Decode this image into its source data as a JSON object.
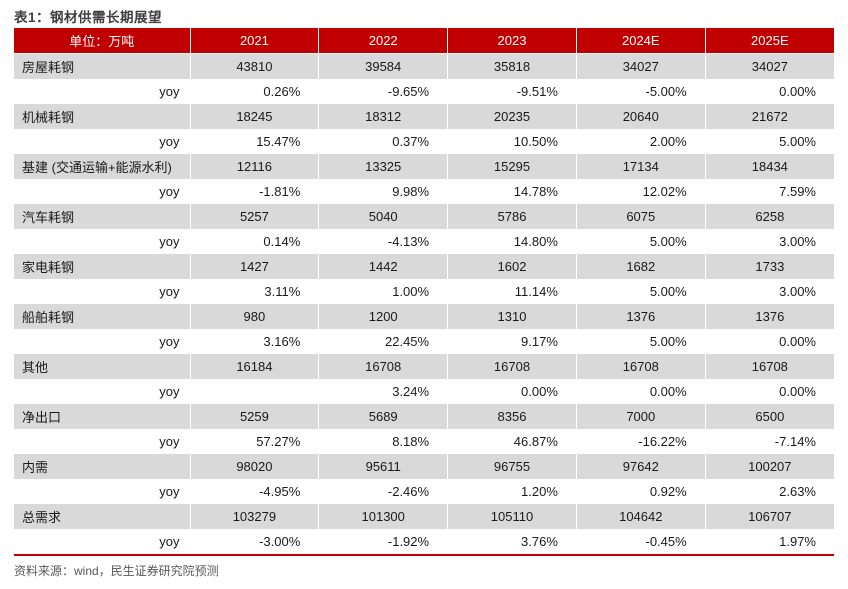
{
  "title": "表1：钢材供需长期展望",
  "footer": "资料来源：wind，民生证券研究院预测",
  "colors": {
    "header_bg": "#c00000",
    "band_bg": "#d9d9d9",
    "accent_line": "#c00000",
    "title_color": "#3f3f3f",
    "footer_color": "#595959"
  },
  "table": {
    "columns": [
      "单位：万吨",
      "2021",
      "2022",
      "2023",
      "2024E",
      "2025E"
    ],
    "yoy_label": "yoy",
    "groups": [
      {
        "label": "房屋耗钢",
        "bold": false,
        "values": [
          "43810",
          "39584",
          "35818",
          "34027",
          "34027"
        ],
        "yoy": [
          "0.26%",
          "-9.65%",
          "-9.51%",
          "-5.00%",
          "0.00%"
        ]
      },
      {
        "label": "机械耗钢",
        "bold": false,
        "values": [
          "18245",
          "18312",
          "20235",
          "20640",
          "21672"
        ],
        "yoy": [
          "15.47%",
          "0.37%",
          "10.50%",
          "2.00%",
          "5.00%"
        ]
      },
      {
        "label": "基建 (交通运输+能源水利)",
        "bold": false,
        "values": [
          "12116",
          "13325",
          "15295",
          "17134",
          "18434"
        ],
        "yoy": [
          "-1.81%",
          "9.98%",
          "14.78%",
          "12.02%",
          "7.59%"
        ]
      },
      {
        "label": "汽车耗钢",
        "bold": false,
        "values": [
          "5257",
          "5040",
          "5786",
          "6075",
          "6258"
        ],
        "yoy": [
          "0.14%",
          "-4.13%",
          "14.80%",
          "5.00%",
          "3.00%"
        ]
      },
      {
        "label": "家电耗钢",
        "bold": false,
        "values": [
          "1427",
          "1442",
          "1602",
          "1682",
          "1733"
        ],
        "yoy": [
          "3.11%",
          "1.00%",
          "11.14%",
          "5.00%",
          "3.00%"
        ]
      },
      {
        "label": "船舶耗钢",
        "bold": false,
        "values": [
          "980",
          "1200",
          "1310",
          "1376",
          "1376"
        ],
        "yoy": [
          "3.16%",
          "22.45%",
          "9.17%",
          "5.00%",
          "0.00%"
        ]
      },
      {
        "label": "其他",
        "bold": false,
        "values": [
          "16184",
          "16708",
          "16708",
          "16708",
          "16708"
        ],
        "yoy": [
          "",
          "3.24%",
          "0.00%",
          "0.00%",
          "0.00%"
        ]
      },
      {
        "label": "净出口",
        "bold": false,
        "values": [
          "5259",
          "5689",
          "8356",
          "7000",
          "6500"
        ],
        "yoy": [
          "57.27%",
          "8.18%",
          "46.87%",
          "-16.22%",
          "-7.14%"
        ]
      },
      {
        "label": "内需",
        "bold": true,
        "values": [
          "98020",
          "95611",
          "96755",
          "97642",
          "100207"
        ],
        "yoy": [
          "-4.95%",
          "-2.46%",
          "1.20%",
          "0.92%",
          "2.63%"
        ]
      },
      {
        "label": "总需求",
        "bold": true,
        "values": [
          "103279",
          "101300",
          "105110",
          "104642",
          "106707"
        ],
        "yoy": [
          "-3.00%",
          "-1.92%",
          "3.76%",
          "-0.45%",
          "1.97%"
        ]
      }
    ]
  }
}
